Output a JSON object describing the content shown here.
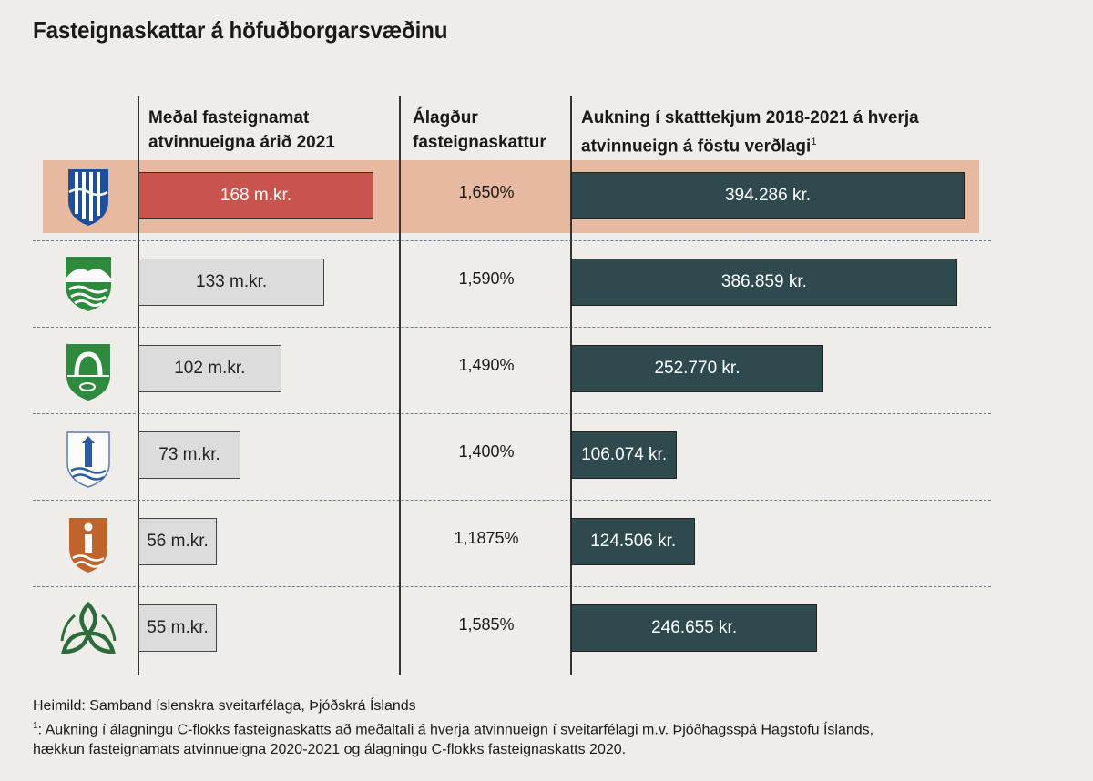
{
  "title": "Fasteignaskattar á höfuðborgarsvæðinu",
  "headers": {
    "col1_line1": "Meðal fasteignamat",
    "col1_line2": "atvinnueigna árið 2021",
    "col2_line1": "Álagður",
    "col2_line2": "fasteignaskattur",
    "col3_line1": "Aukning í skatttekjum 2018-2021 á hverja",
    "col3_line2": "atvinnueign á föstu verðlagi",
    "col3_sup": "1"
  },
  "chart_data": {
    "type": "bar",
    "rows": [
      {
        "crest": "reykjavik-crest-icon",
        "valuation": 168,
        "valuation_label": "168 m.kr.",
        "rate": "1,650%",
        "increase": 394286,
        "increase_label": "394.286 kr.",
        "highlight": true
      },
      {
        "crest": "kopavogur-crest-icon",
        "valuation": 133,
        "valuation_label": "133 m.kr.",
        "rate": "1,590%",
        "increase": 386859,
        "increase_label": "386.859 kr.",
        "highlight": false
      },
      {
        "crest": "hafnarfjordur-crest-icon",
        "valuation": 102,
        "valuation_label": "102 m.kr.",
        "rate": "1,490%",
        "increase": 252770,
        "increase_label": "252.770 kr.",
        "highlight": false
      },
      {
        "crest": "gardabaer-crest-icon",
        "valuation": 73,
        "valuation_label": "73 m.kr.",
        "rate": "1,400%",
        "increase": 106074,
        "increase_label": "106.074 kr.",
        "highlight": false
      },
      {
        "crest": "seltjarnarnes-crest-icon",
        "valuation": 56,
        "valuation_label": "56 m.kr.",
        "rate": "1,1875%",
        "increase": 124506,
        "increase_label": "124.506 kr.",
        "highlight": false
      },
      {
        "crest": "mosfellsbaer-crest-icon",
        "valuation": 55,
        "valuation_label": "55 m.kr.",
        "rate": "1,585%",
        "increase": 246655,
        "increase_label": "246.655 kr.",
        "highlight": false
      }
    ]
  },
  "colors": {
    "highlight_bg": "#e7b9a0",
    "highlight_bar": "#c9534d",
    "light_bar": "#dcdcdc",
    "dark_bar": "#2f4a4e",
    "background": "#efedea"
  },
  "footer": {
    "source": "Heimild: Samband íslenskra sveitarfélaga, Þjóðskrá Íslands",
    "note_marker": "1",
    "note_line1": ": Aukning í álagningu C-flokks fasteignaskatts að meðaltali á hverja atvinnueign í sveitarfélagi m.v. Þjóðhagsspá Hagstofu Íslands,",
    "note_line2": "hækkun fasteignamats atvinnueigna 2020-2021 og álagningu C-flokks fasteignaskatts 2020."
  }
}
